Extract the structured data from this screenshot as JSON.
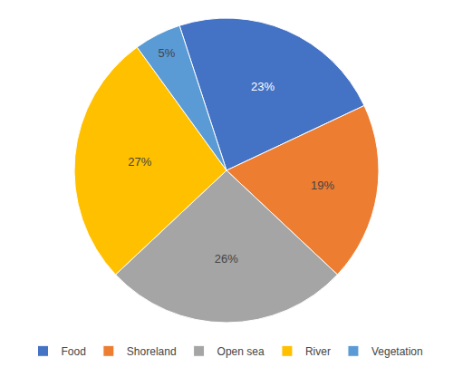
{
  "chart_data": {
    "type": "pie",
    "categories": [
      "Food",
      "Shoreland",
      "Open sea",
      "River",
      "Vegetation"
    ],
    "values": [
      23,
      19,
      26,
      27,
      5
    ],
    "value_labels": [
      "23%",
      "19%",
      "26%",
      "27%",
      "5%"
    ],
    "colors": [
      "#4472C4",
      "#ED7D31",
      "#A5A5A5",
      "#FFC000",
      "#5B9BD5"
    ],
    "legend": "bottom",
    "data_labels": true
  }
}
